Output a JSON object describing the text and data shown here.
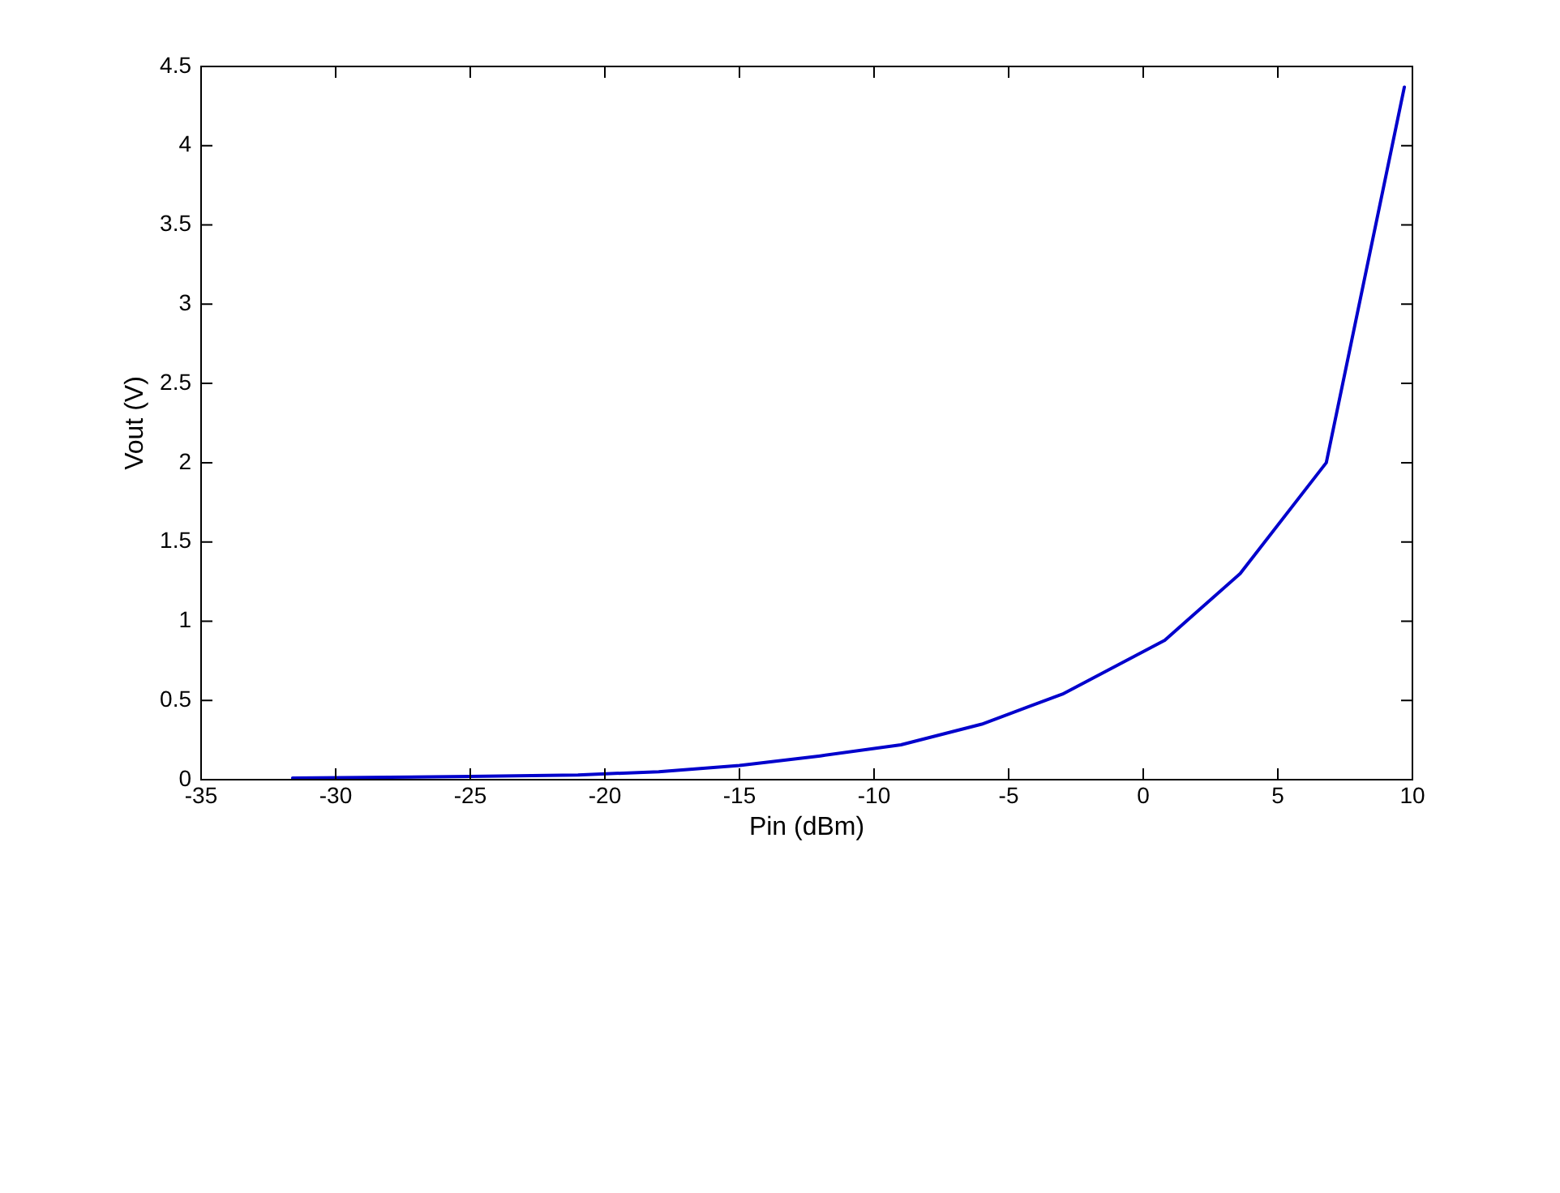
{
  "chart_data": {
    "type": "line",
    "xlabel": "Pin (dBm)",
    "ylabel": "Vout (V)",
    "x": [
      -31.6,
      -25,
      -21,
      -18,
      -15,
      -12,
      -9,
      -6,
      -3,
      0.8,
      3.6,
      6.8,
      9.7
    ],
    "series": [
      {
        "color": "#0000cc",
        "values": [
          0.01,
          0.02,
          0.03,
          0.05,
          0.09,
          0.15,
          0.22,
          0.35,
          0.54,
          0.88,
          1.3,
          2.0,
          4.37
        ]
      }
    ],
    "xlim": [
      -35,
      10
    ],
    "xticks": [
      -35,
      -30,
      -25,
      -20,
      -15,
      -10,
      -5,
      0,
      5,
      10
    ],
    "ylim": [
      0,
      4.5
    ],
    "yticks": [
      0,
      0.5,
      1,
      1.5,
      2,
      2.5,
      3,
      3.5,
      4,
      4.5
    ],
    "grid": false,
    "legend": false,
    "marker": "none",
    "line_style": "solid"
  }
}
